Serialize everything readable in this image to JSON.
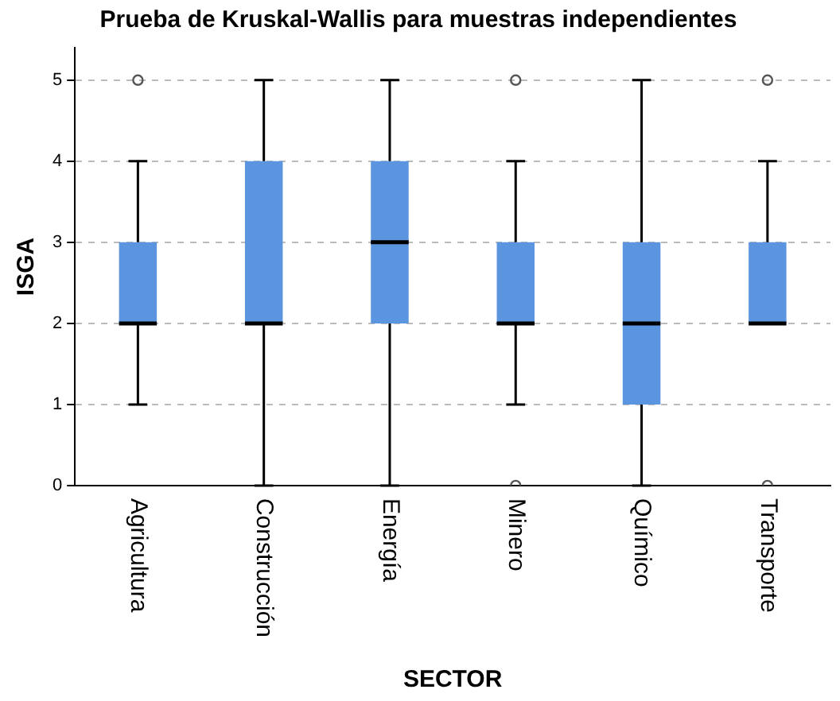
{
  "chart_data": {
    "type": "box",
    "title": "Prueba de Kruskal-Wallis para muestras independientes",
    "xlabel": "SECTOR",
    "ylabel": "ISGA",
    "categories": [
      "Agricultura",
      "Construcción",
      "Energía",
      "Minero",
      "Químico",
      "Transporte"
    ],
    "color": "#5b95e0",
    "boxes": [
      {
        "low": 1,
        "q1": 2,
        "median": 2,
        "q3": 3,
        "high": 4,
        "outliers": [
          5
        ]
      },
      {
        "low": 0,
        "q1": 2,
        "median": 2,
        "q3": 4,
        "high": 5
      },
      {
        "low": 0,
        "q1": 2,
        "median": 3,
        "q3": 4,
        "high": 5
      },
      {
        "low": 1,
        "q1": 2,
        "median": 2,
        "q3": 3,
        "high": 4,
        "outliers": [
          5,
          0
        ]
      },
      {
        "low": 0,
        "q1": 1,
        "median": 2,
        "q3": 3,
        "high": 5
      },
      {
        "low": 2,
        "q1": 2,
        "median": 2,
        "q3": 3,
        "high": 4,
        "outliers": [
          5,
          0
        ]
      }
    ],
    "ylim": [
      0,
      5.4
    ],
    "yticks": [
      0,
      1,
      2,
      3,
      4,
      5
    ],
    "grid": "y",
    "legend": false
  }
}
